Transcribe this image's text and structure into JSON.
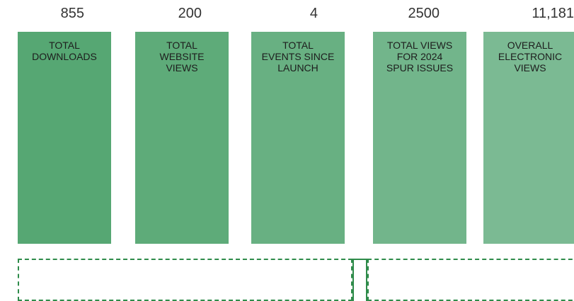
{
  "stats": [
    {
      "value": "855",
      "label": [
        "TOTAL",
        "DOWNLOADS"
      ]
    },
    {
      "value": "200",
      "label": [
        "TOTAL",
        "WEBSITE",
        "VIEWS"
      ]
    },
    {
      "value": "4",
      "label": [
        "TOTAL",
        "EVENTS SINCE",
        "LAUNCH"
      ]
    },
    {
      "value": "2500",
      "label": [
        "TOTAL VIEWS",
        "FOR 2024",
        "SPUR ISSUES"
      ]
    },
    {
      "value": "11,181",
      "label": [
        "OVERALL",
        "ELECTRONIC",
        "VIEWS"
      ]
    }
  ]
}
